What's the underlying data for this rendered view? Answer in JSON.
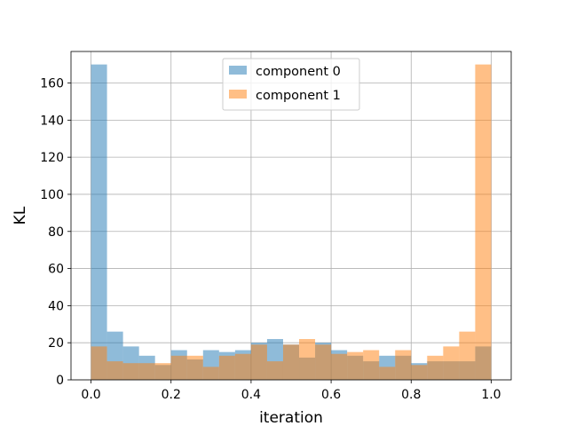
{
  "chart_data": {
    "type": "histogram",
    "xlabel": "iteration",
    "ylabel": "KL",
    "xlim": [
      -0.05,
      1.05
    ],
    "ylim": [
      0,
      177
    ],
    "xticks": [
      0.0,
      0.2,
      0.4,
      0.6,
      0.8,
      1.0
    ],
    "xtick_labels": [
      "0.0",
      "0.2",
      "0.4",
      "0.6",
      "0.8",
      "1.0"
    ],
    "yticks": [
      0,
      20,
      40,
      60,
      80,
      100,
      120,
      140,
      160
    ],
    "ytick_labels": [
      "0",
      "20",
      "40",
      "60",
      "80",
      "100",
      "120",
      "140",
      "160"
    ],
    "grid": true,
    "legend_position": "top-center",
    "bin_start": 0.0,
    "bin_end": 1.0,
    "bin_count": 25,
    "series": [
      {
        "name": "component 0",
        "color": "#1f77b4",
        "values": [
          170,
          26,
          18,
          13,
          8,
          16,
          11,
          16,
          15,
          16,
          20,
          22,
          19,
          12,
          20,
          16,
          13,
          10,
          13,
          13,
          9,
          10,
          10,
          10,
          18
        ]
      },
      {
        "name": "component 1",
        "color": "#ff7f0e",
        "values": [
          18,
          10,
          9,
          9,
          9,
          13,
          13,
          7,
          13,
          14,
          19,
          10,
          19,
          22,
          19,
          14,
          15,
          16,
          7,
          16,
          8,
          13,
          18,
          26,
          170
        ]
      }
    ],
    "bar_alpha": 0.5
  }
}
